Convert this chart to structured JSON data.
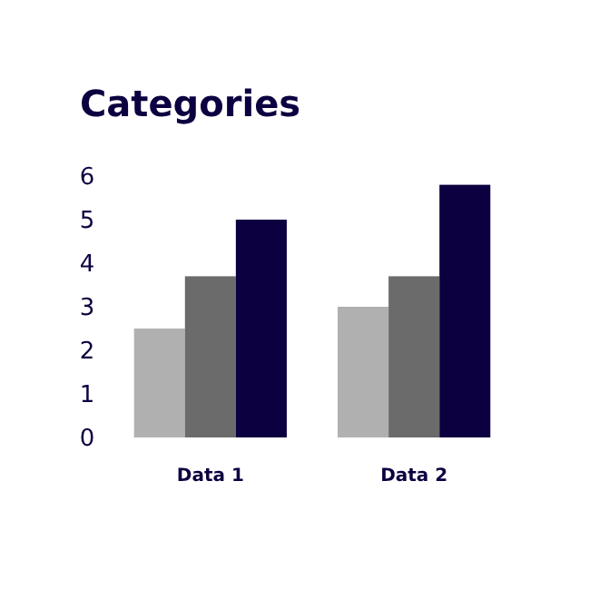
{
  "chart_data": {
    "type": "bar",
    "title": "Categories",
    "categories": [
      "Data 1",
      "Data 2"
    ],
    "series": [
      {
        "color": "#b0b0b0",
        "values": [
          2.5,
          3
        ]
      },
      {
        "color": "#6b6b6b",
        "values": [
          3.7,
          3.7
        ]
      },
      {
        "color": "#0c0040",
        "values": [
          5,
          5.8
        ]
      }
    ],
    "ylim": [
      0,
      6
    ],
    "yticks": [
      0,
      1,
      2,
      3,
      4,
      5,
      6
    ],
    "grid": false
  }
}
